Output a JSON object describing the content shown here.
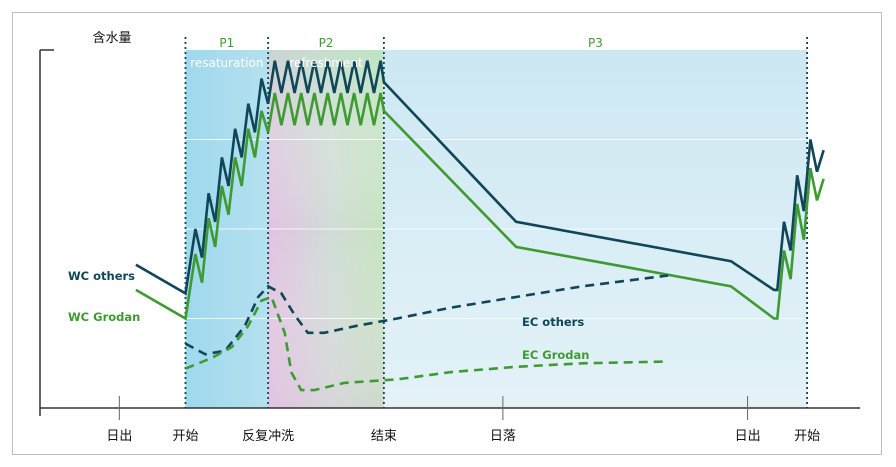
{
  "chart_data": {
    "type": "line",
    "ylabel": "含水量",
    "x_ticks": [
      {
        "label": "日出",
        "x": 0
      },
      {
        "label": "开始",
        "x": 1
      },
      {
        "label": "反复冲洗",
        "x": 2.25
      },
      {
        "label": "结束",
        "x": 4
      },
      {
        "label": "日落",
        "x": 5.8
      },
      {
        "label": "日出",
        "x": 9.5
      },
      {
        "label": "开始",
        "x": 10.4
      }
    ],
    "phases": [
      {
        "name": "P1",
        "subtitle": "resaturation",
        "x_start": 1,
        "x_end": 2.25,
        "color": "#8fd0e8"
      },
      {
        "name": "P2",
        "subtitle": "refreshment",
        "x_start": 2.25,
        "x_end": 4,
        "color": "#d9b6dc"
      },
      {
        "name": "P3",
        "subtitle": "",
        "x_start": 4,
        "x_end": 10.4,
        "color": "#d7ecf5"
      }
    ],
    "xlim": [
      -1.2,
      11.2
    ],
    "ylim": [
      0,
      100
    ],
    "grid": true,
    "series": [
      {
        "name": "WC others",
        "color": "#0f4658",
        "style": "solid",
        "x": [
          0.25,
          1.0,
          1.15,
          1.25,
          1.35,
          1.45,
          1.55,
          1.65,
          1.75,
          1.85,
          1.95,
          2.05,
          2.15,
          2.25,
          2.35,
          2.45,
          2.55,
          2.65,
          2.75,
          2.85,
          2.95,
          3.05,
          3.15,
          3.25,
          3.35,
          3.45,
          3.55,
          3.65,
          3.75,
          3.85,
          3.95,
          4.0,
          6.0,
          9.25,
          9.9,
          9.95,
          10.05,
          10.15,
          10.25,
          10.35,
          10.45,
          10.55,
          10.65
        ],
        "y": [
          40,
          32,
          50,
          42,
          60,
          52,
          70,
          62,
          78,
          70,
          85,
          77,
          92,
          85,
          97,
          88,
          97,
          88,
          97,
          88,
          97,
          88,
          97,
          88,
          97,
          88,
          97,
          88,
          97,
          88,
          97,
          91,
          52,
          41,
          33,
          33,
          52,
          44,
          65,
          55,
          75,
          66,
          72
        ]
      },
      {
        "name": "WC Grodan",
        "color": "#3f9a32",
        "style": "solid",
        "x": [
          0.25,
          1.0,
          1.15,
          1.25,
          1.35,
          1.45,
          1.55,
          1.65,
          1.75,
          1.85,
          1.95,
          2.05,
          2.15,
          2.25,
          2.35,
          2.45,
          2.55,
          2.65,
          2.75,
          2.85,
          2.95,
          3.05,
          3.15,
          3.25,
          3.35,
          3.45,
          3.55,
          3.65,
          3.75,
          3.85,
          3.95,
          4.0,
          6.0,
          9.25,
          9.9,
          9.95,
          10.05,
          10.15,
          10.25,
          10.35,
          10.45,
          10.55,
          10.65
        ],
        "y": [
          33,
          25,
          43,
          35,
          53,
          45,
          62,
          54,
          70,
          62,
          78,
          70,
          83,
          77,
          88,
          79,
          88,
          79,
          88,
          79,
          88,
          79,
          88,
          79,
          88,
          79,
          88,
          79,
          88,
          79,
          88,
          83,
          45,
          34,
          25,
          25,
          44,
          36,
          57,
          47,
          67,
          58,
          64
        ]
      },
      {
        "name": "EC others",
        "color": "#0f4658",
        "style": "dashed",
        "x": [
          1.0,
          1.3,
          1.6,
          1.9,
          2.1,
          2.25,
          2.45,
          2.65,
          2.85,
          3.1,
          3.6,
          4.2,
          5.0,
          6.0,
          7.0,
          8.3
        ],
        "y": [
          18,
          15,
          16,
          23,
          31,
          34,
          32,
          26,
          21,
          21,
          23,
          25,
          28,
          31,
          34,
          37
        ]
      },
      {
        "name": "EC Grodan",
        "color": "#3f9a32",
        "style": "dashed",
        "x": [
          1.0,
          1.4,
          1.7,
          1.95,
          2.15,
          2.3,
          2.5,
          2.6,
          2.75,
          2.95,
          3.4,
          4.2,
          5.0,
          6.0,
          7.0,
          8.3
        ],
        "y": [
          11,
          14,
          17,
          23,
          30,
          31,
          21,
          10,
          5,
          5,
          7,
          8,
          10,
          11.5,
          12.5,
          13
        ]
      }
    ]
  }
}
